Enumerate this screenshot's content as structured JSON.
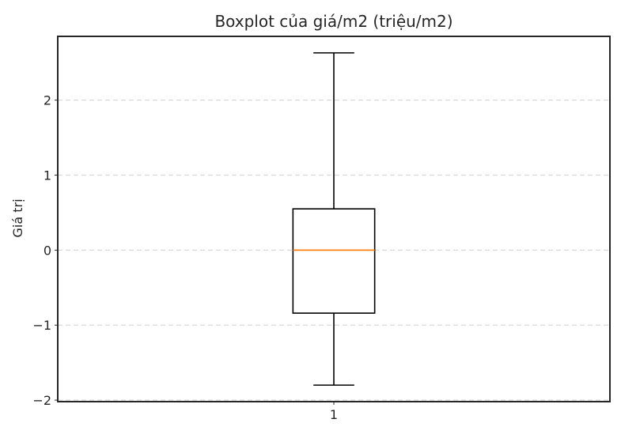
{
  "chart_data": {
    "type": "boxplot",
    "title": "Boxplot của giá/m2 (triệu/m2)",
    "xlabel": "",
    "ylabel": "Giá trị",
    "categories": [
      "1"
    ],
    "boxes": [
      {
        "category": "1",
        "whisker_low": -1.8,
        "q1": -0.84,
        "median": 0.0,
        "q3": 0.55,
        "whisker_high": 2.63
      }
    ],
    "ylim": [
      -2.02,
      2.85
    ],
    "yticks": [
      2,
      1,
      0,
      -1,
      -2
    ],
    "ytick_labels": [
      "2",
      "1",
      "0",
      "−1",
      "−2"
    ],
    "grid": {
      "axis": "y",
      "style": "dashed",
      "color": "#d9d9d9"
    },
    "colors": {
      "median": "#ff7f0e",
      "box": "#000000",
      "frame": "#262626"
    }
  }
}
